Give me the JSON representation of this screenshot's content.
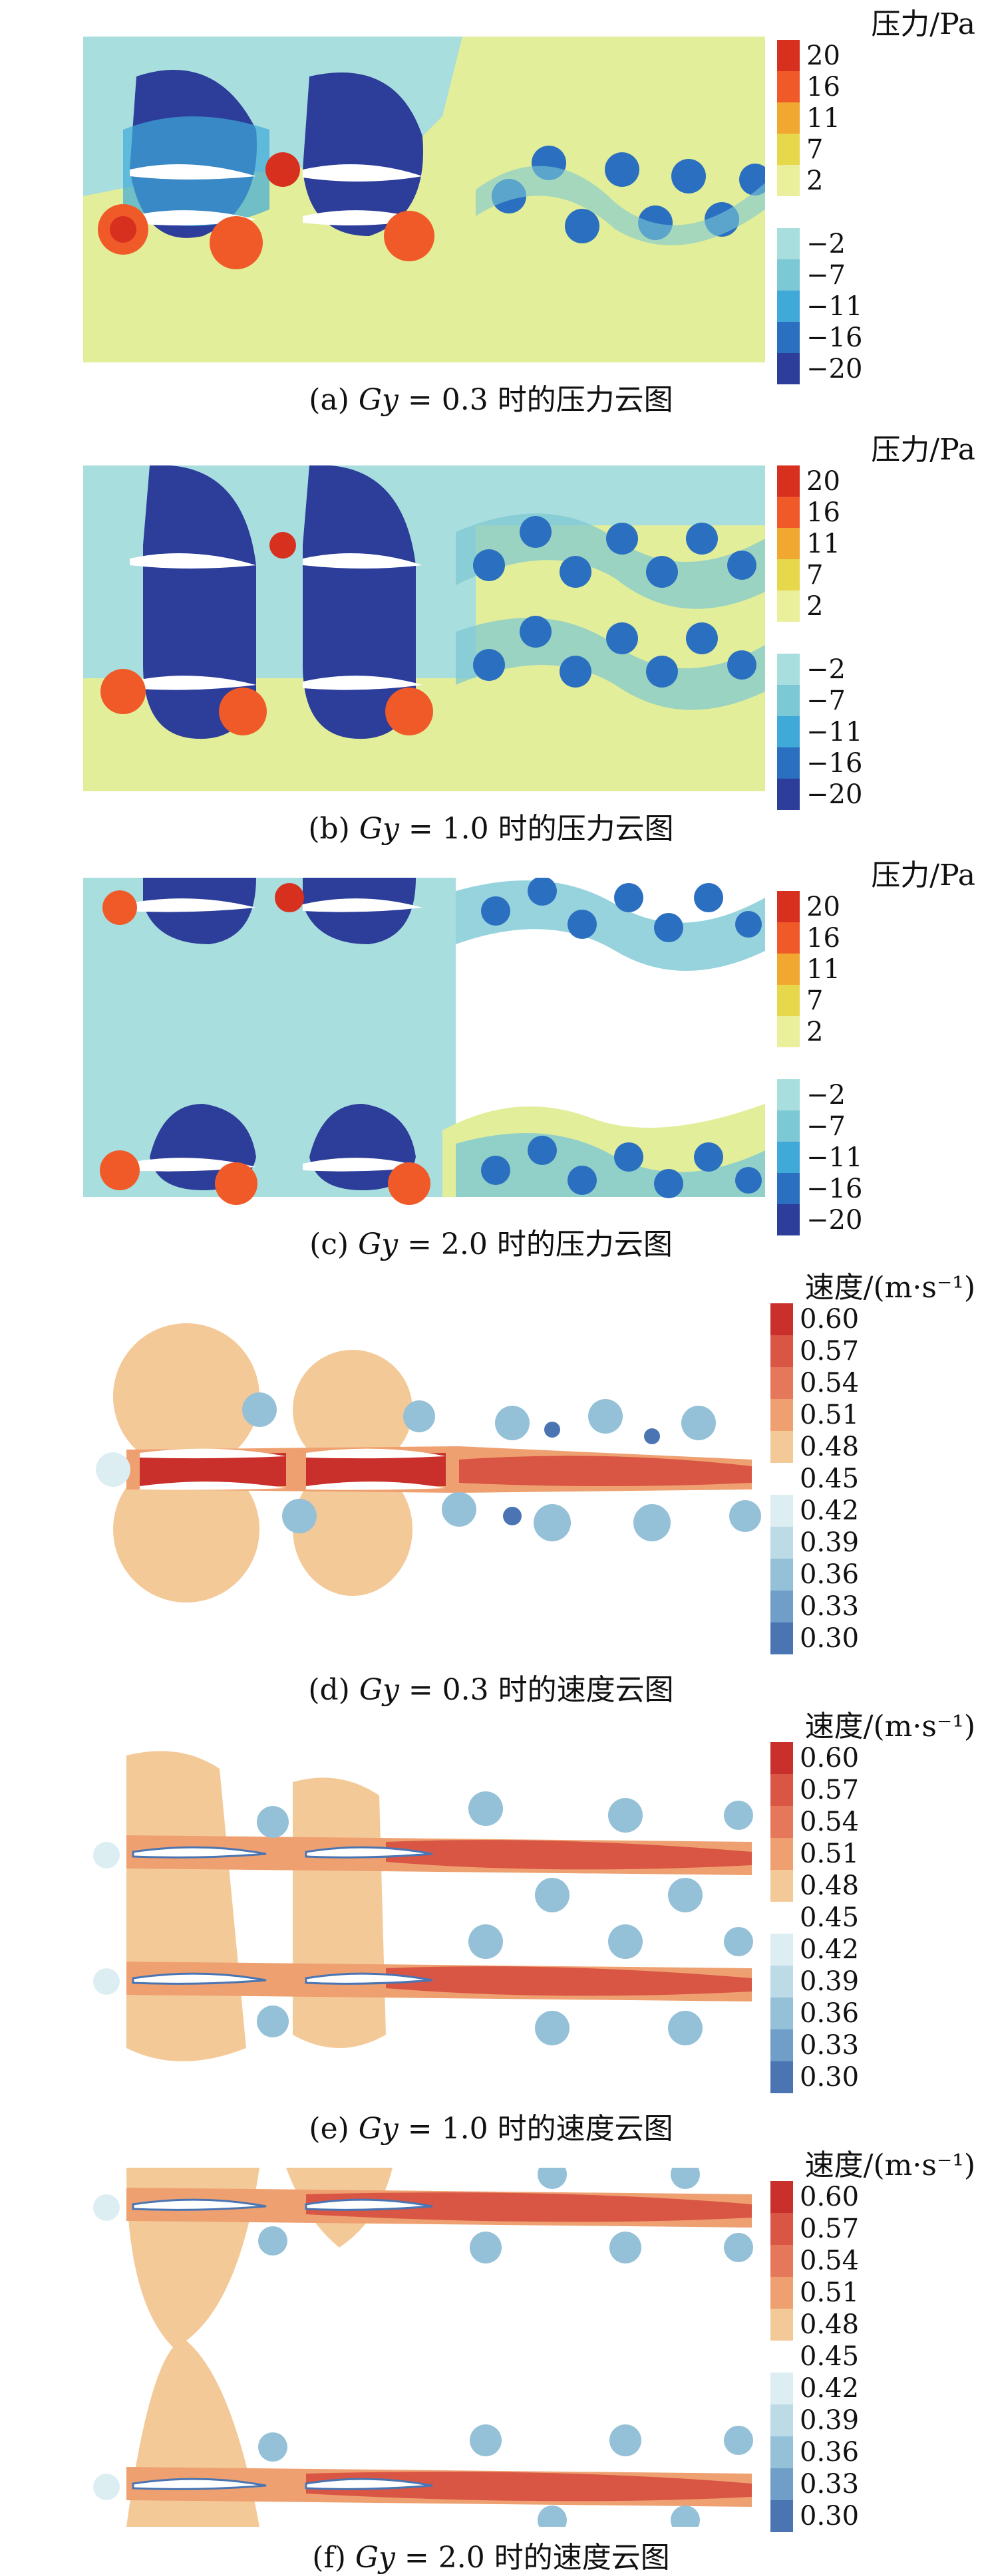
{
  "panels": [
    {
      "kind": "pressure",
      "legend_title": "压力/Pa",
      "ticks": [
        "20",
        "16",
        "11",
        "7",
        "2",
        "−2",
        "−7",
        "−11",
        "−16",
        "−20"
      ],
      "caption": {
        "prefix": "(a) ",
        "var": "Gy",
        "mid": " = 0.3 ",
        "suffix": "时的压力云图"
      }
    },
    {
      "kind": "pressure",
      "legend_title": "压力/Pa",
      "ticks": [
        "20",
        "16",
        "11",
        "7",
        "2",
        "−2",
        "−7",
        "−11",
        "−16",
        "−20"
      ],
      "caption": {
        "prefix": "(b) ",
        "var": "Gy",
        "mid": " = 1.0 ",
        "suffix": "时的压力云图"
      }
    },
    {
      "kind": "pressure",
      "legend_title": "压力/Pa",
      "ticks": [
        "20",
        "16",
        "11",
        "7",
        "2",
        "−2",
        "−7",
        "−11",
        "−16",
        "−20"
      ],
      "caption": {
        "prefix": "(c) ",
        "var": "Gy",
        "mid": " = 2.0 ",
        "suffix": "时的压力云图"
      }
    },
    {
      "kind": "velocity",
      "legend_title": "速度/(m·s⁻¹)",
      "ticks": [
        "0.60",
        "0.57",
        "0.54",
        "0.51",
        "0.48",
        "0.45",
        "0.42",
        "0.39",
        "0.36",
        "0.33",
        "0.30"
      ],
      "caption": {
        "prefix": "(d) ",
        "var": "Gy",
        "mid": " = 0.3 ",
        "suffix": "时的速度云图"
      }
    },
    {
      "kind": "velocity",
      "legend_title": "速度/(m·s⁻¹)",
      "ticks": [
        "0.60",
        "0.57",
        "0.54",
        "0.51",
        "0.48",
        "0.45",
        "0.42",
        "0.39",
        "0.36",
        "0.33",
        "0.30"
      ],
      "caption": {
        "prefix": "(e) ",
        "var": "Gy",
        "mid": " = 1.0 ",
        "suffix": "时的速度云图"
      }
    },
    {
      "kind": "velocity",
      "legend_title": "速度/(m·s⁻¹)",
      "ticks": [
        "0.60",
        "0.57",
        "0.54",
        "0.51",
        "0.48",
        "0.45",
        "0.42",
        "0.39",
        "0.36",
        "0.33",
        "0.30"
      ],
      "caption": {
        "prefix": "(f) ",
        "var": "Gy",
        "mid": " = 2.0 ",
        "suffix": "时的速度云图"
      }
    }
  ],
  "colors": {
    "pressure_swatches": [
      "#d7301f",
      "#f05a28",
      "#f0a830",
      "#e6d84a",
      "#e9ef9a",
      "#a8dede",
      "#7cc8d4",
      "#3fa9d8",
      "#2b6fc0",
      "#2c3d9a"
    ],
    "velocity_swatches": [
      "#c9302c",
      "#d95544",
      "#e5775a",
      "#eea070",
      "#f4c998",
      "#ffffff",
      "#ddeef3",
      "#bcdbe6",
      "#94c0d8",
      "#6f9fc9",
      "#4a75b2"
    ],
    "pressure_background": "#e3ee9a",
    "pressure_mid": "#a8dede",
    "pressure_low": "#2c3d9a",
    "velocity_background": "#ffffff"
  }
}
